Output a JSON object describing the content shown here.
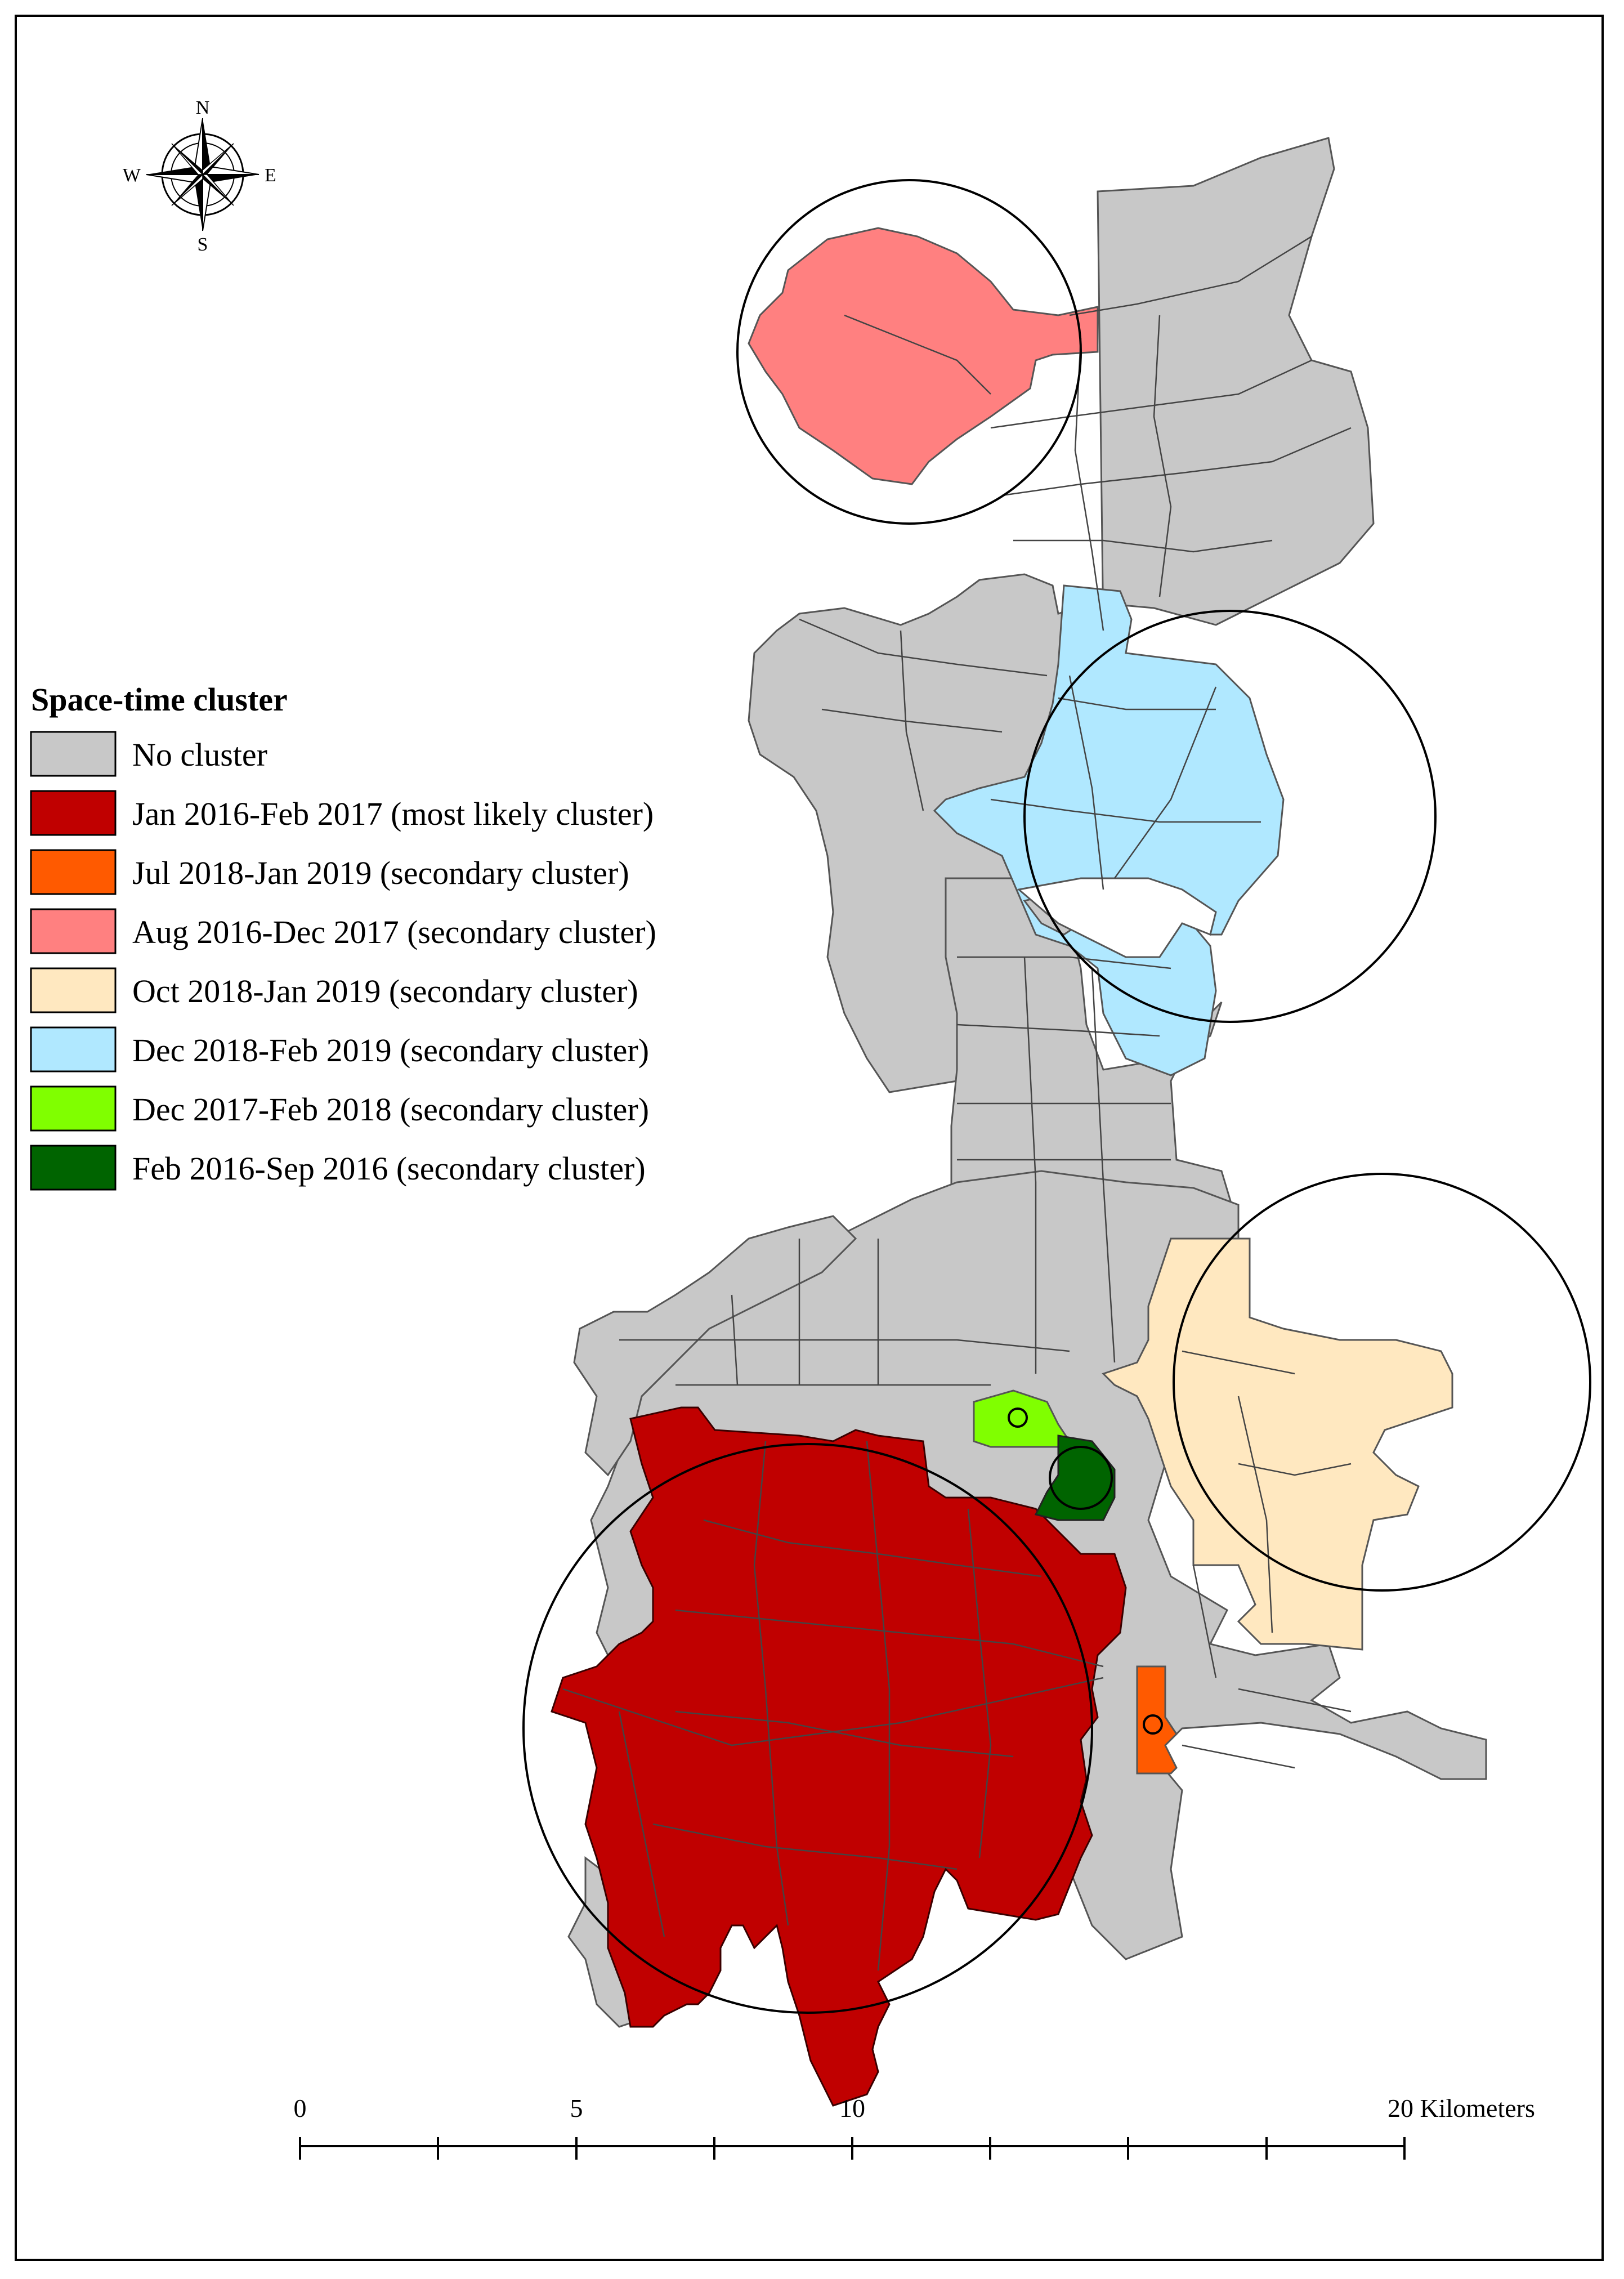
{
  "legend": {
    "title": "Space-time cluster",
    "items": [
      {
        "label": "No cluster",
        "color": "#c8c8c8"
      },
      {
        "label": "Jan 2016-Feb 2017 (most likely cluster)",
        "color": "#c00000"
      },
      {
        "label": "Jul 2018-Jan 2019 (secondary cluster)",
        "color": "#ff5a00"
      },
      {
        "label": "Aug 2016-Dec 2017 (secondary cluster)",
        "color": "#ff8080"
      },
      {
        "label": "Oct 2018-Jan 2019 (secondary cluster)",
        "color": "#ffe8c0"
      },
      {
        "label": "Dec 2018-Feb 2019 (secondary cluster)",
        "color": "#b0e8ff"
      },
      {
        "label": "Dec 2017-Feb 2018 (secondary cluster)",
        "color": "#80ff00"
      },
      {
        "label": "Feb 2016-Sep 2016 (secondary cluster)",
        "color": "#006400"
      }
    ]
  },
  "compass": {
    "n": "N",
    "s": "S",
    "e": "E",
    "w": "W",
    "icon": "north-arrow-compass-rose"
  },
  "scale_bar": {
    "ticks": [
      "0",
      "5",
      "10",
      "20 Kilometers"
    ]
  }
}
